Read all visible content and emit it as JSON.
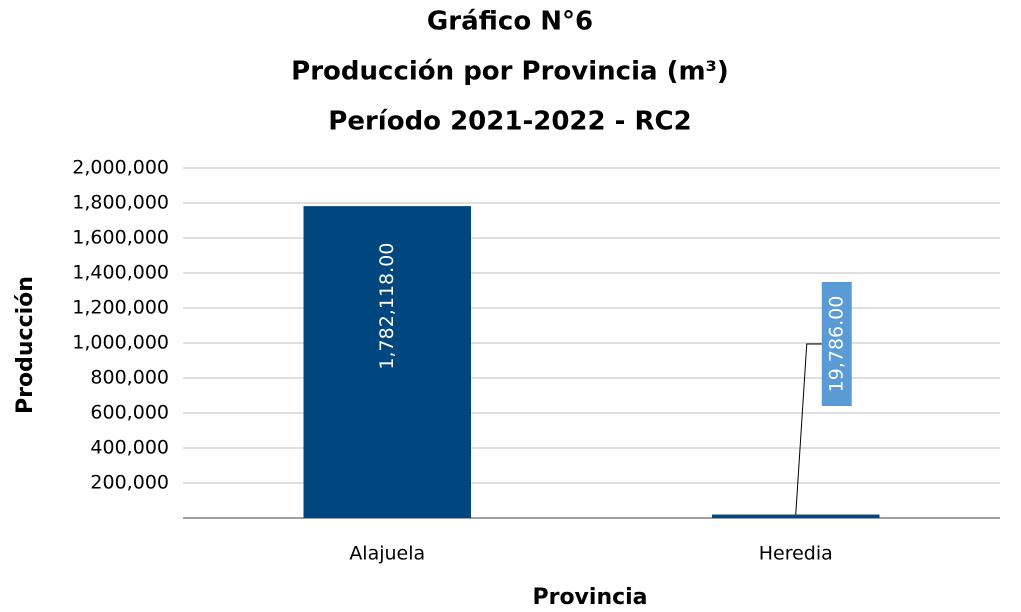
{
  "chart_data": {
    "type": "bar",
    "title": [
      "Gráfico N°6",
      "Producción por Provincia (m³)",
      "Período 2021-2022 - RC2"
    ],
    "x_label": "Provincia",
    "y_label": "Producción",
    "categories": [
      "Alajuela",
      "Heredia"
    ],
    "values": [
      1782118,
      19786
    ],
    "value_labels": [
      "1,782,118.00",
      "19,786.00"
    ],
    "color": "#00467f",
    "ylim": [
      0,
      2000000
    ],
    "yticks": [
      {
        "value": 200000,
        "label": "200,000"
      },
      {
        "value": 400000,
        "label": "400,000"
      },
      {
        "value": 600000,
        "label": "600,000"
      },
      {
        "value": 800000,
        "label": "800,000"
      },
      {
        "value": 1000000,
        "label": "1,000,000"
      },
      {
        "value": 1200000,
        "label": "1,200,000"
      },
      {
        "value": 1400000,
        "label": "1,400,000"
      },
      {
        "value": 1600000,
        "label": "1,600,000"
      },
      {
        "value": 1800000,
        "label": "1,800,000"
      },
      {
        "value": 2000000,
        "label": "2,000,000"
      }
    ],
    "grid": true
  }
}
